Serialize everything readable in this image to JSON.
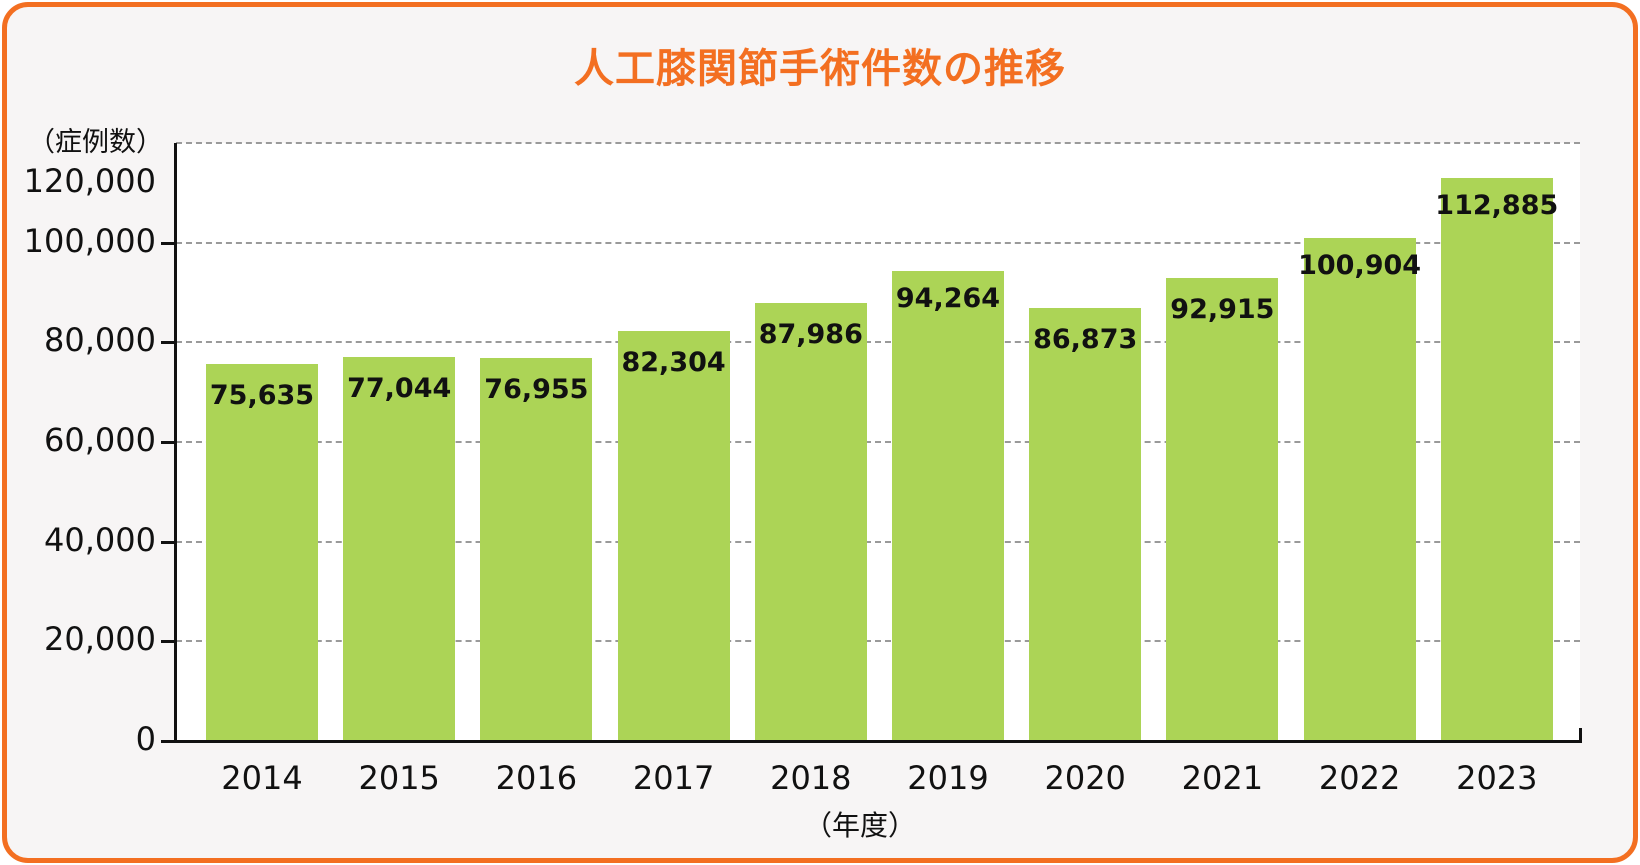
{
  "title": "人工膝関節手術件数の推移",
  "colors": {
    "accent": "#f36f21",
    "bar": "#acd456",
    "card_bg": "#f7f5f5"
  },
  "y_axis": {
    "label": "（症例数）",
    "ticks": [
      "0",
      "20,000",
      "40,000",
      "60,000",
      "80,000",
      "100,000",
      "120,000"
    ]
  },
  "x_axis": {
    "label": "（年度）"
  },
  "chart_data": {
    "type": "bar",
    "title": "人工膝関節手術件数の推移",
    "xlabel": "（年度）",
    "ylabel": "（症例数）",
    "categories": [
      "2014",
      "2015",
      "2016",
      "2017",
      "2018",
      "2019",
      "2020",
      "2021",
      "2022",
      "2023"
    ],
    "values": [
      75635,
      77044,
      76955,
      82304,
      87986,
      94264,
      86873,
      92915,
      100904,
      112885
    ],
    "value_labels": [
      "75,635",
      "77,044",
      "76,955",
      "82,304",
      "87,986",
      "94,264",
      "86,873",
      "92,915",
      "100,904",
      "112,885"
    ],
    "ylim": [
      0,
      120000
    ],
    "yticks": [
      0,
      20000,
      40000,
      60000,
      80000,
      100000,
      120000
    ],
    "grid": "horizontal dashed",
    "legend": "none"
  }
}
